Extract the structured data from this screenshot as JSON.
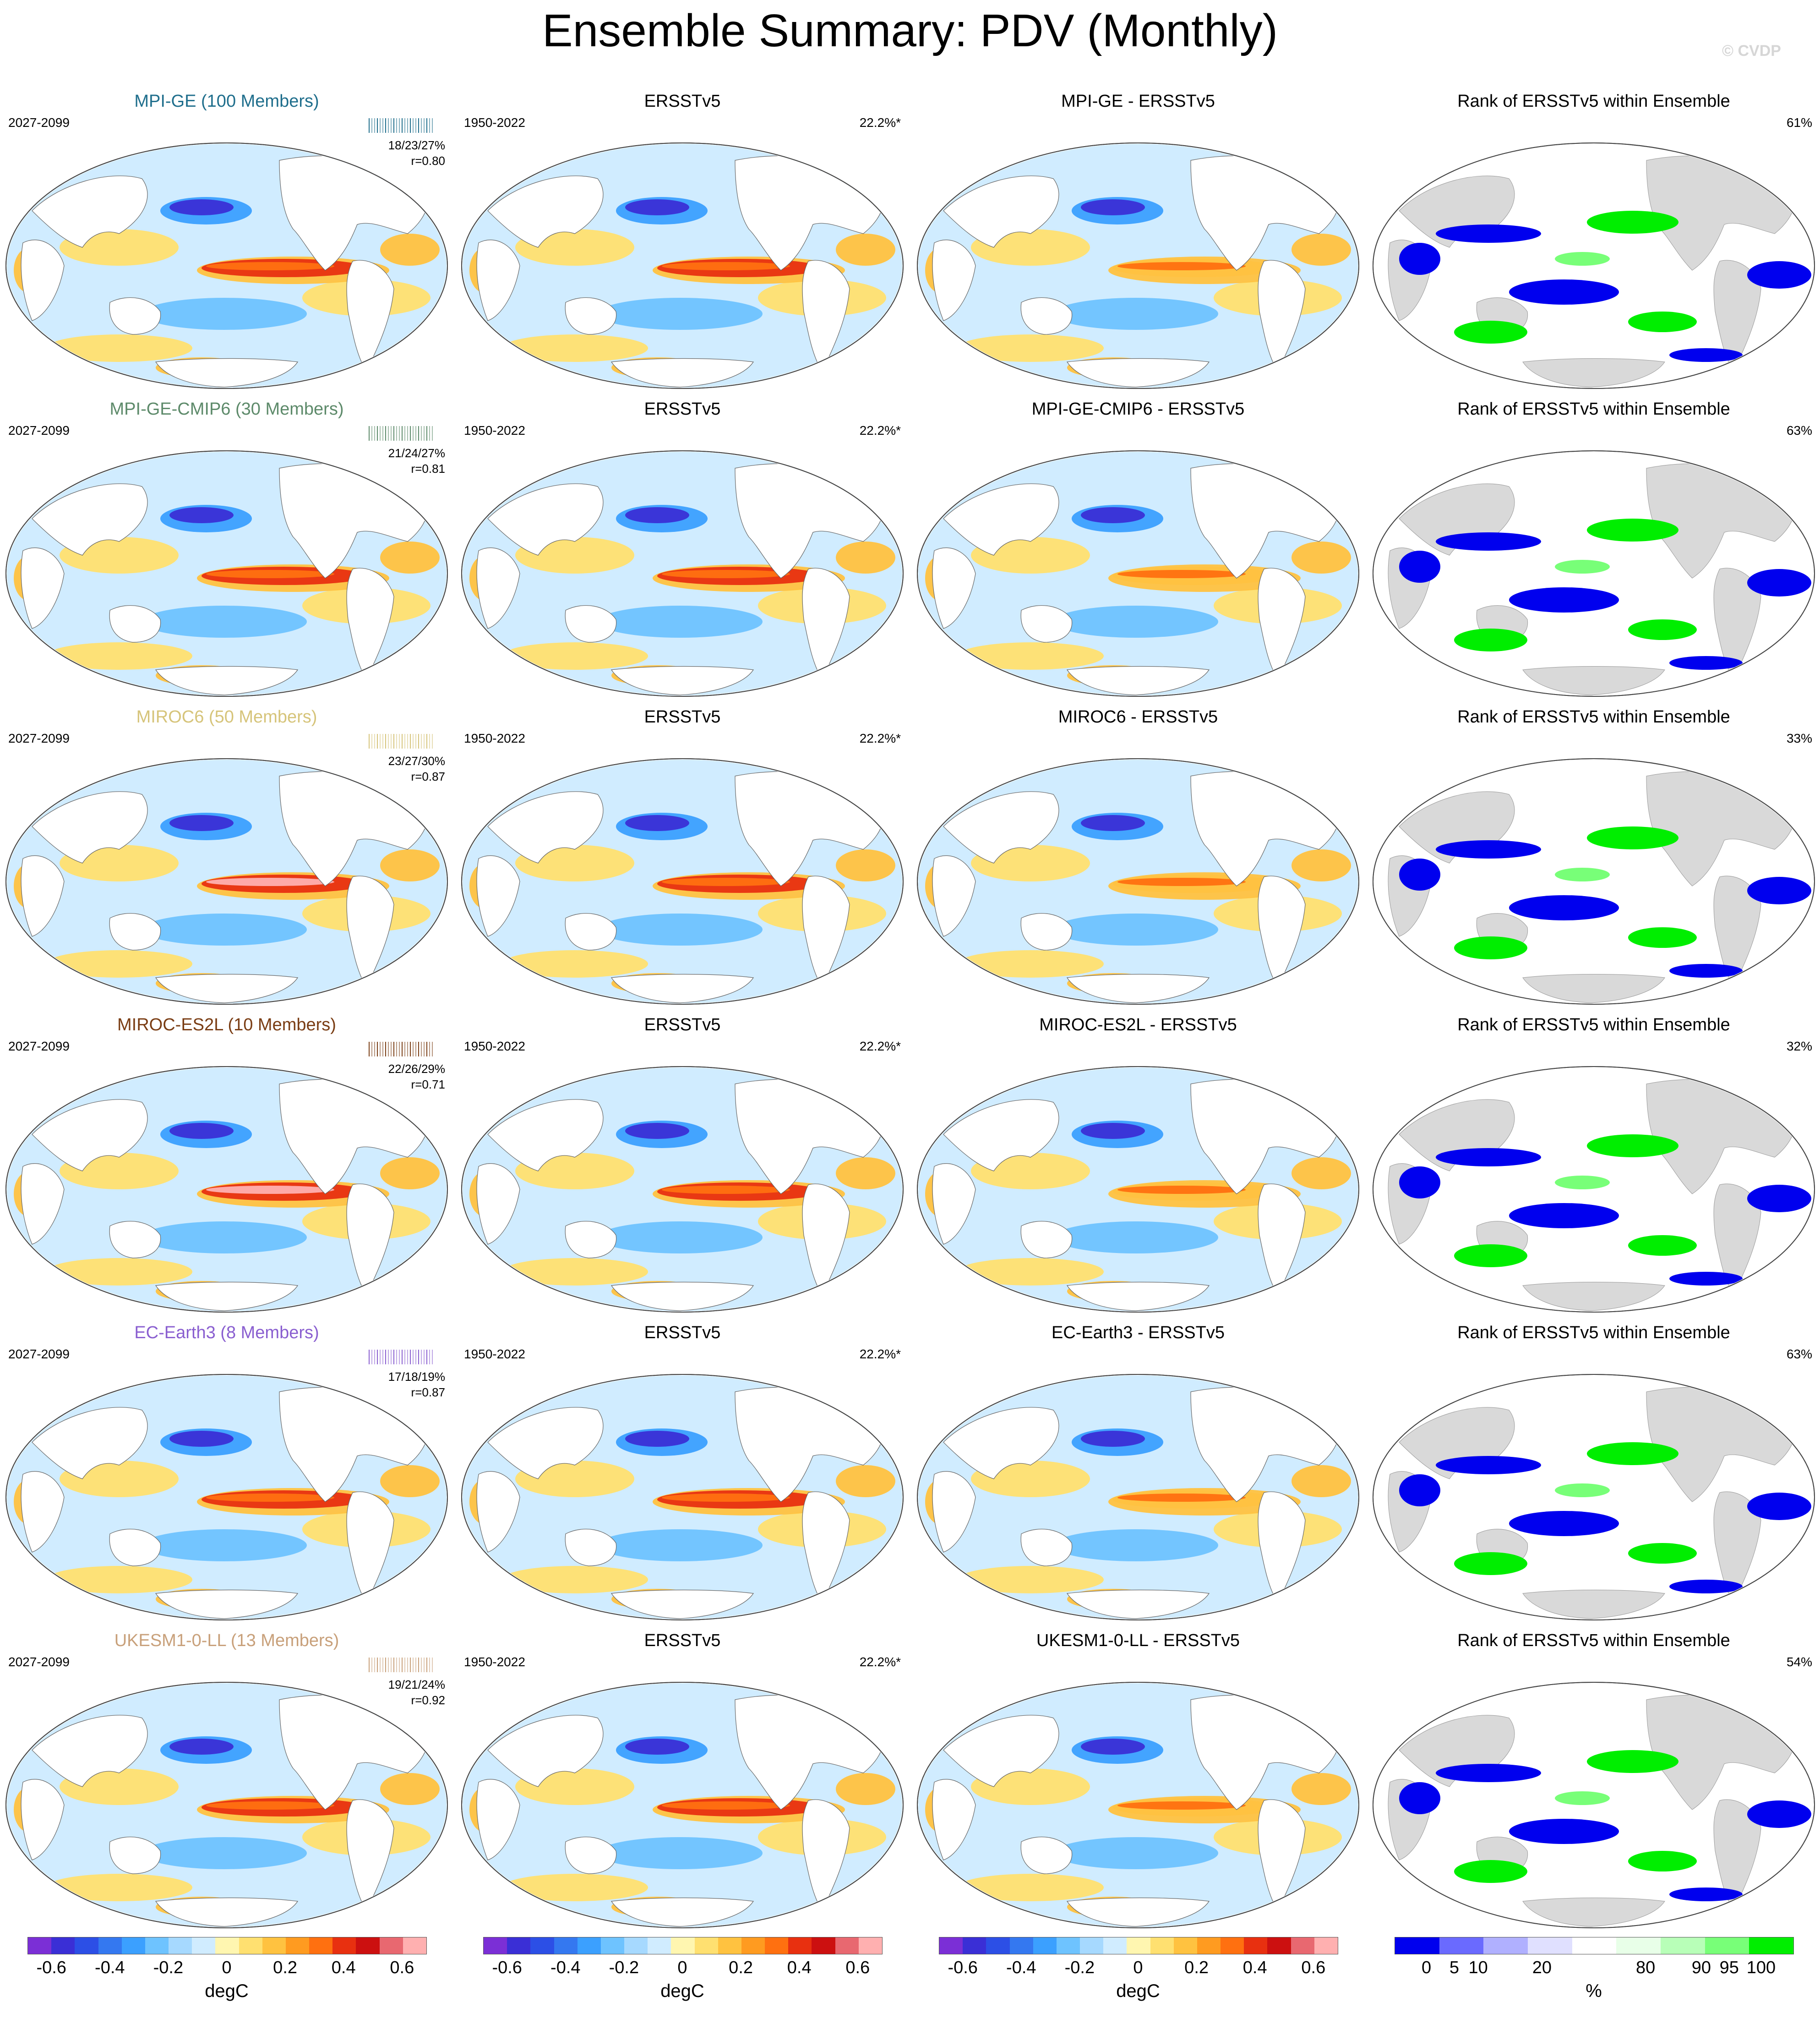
{
  "title": "Ensemble Summary: PDV (Monthly)",
  "credit": "© CVDP",
  "colors": {
    "diverging": [
      "#7b2fd6",
      "#3a2fd6",
      "#2c4fe6",
      "#3478f0",
      "#3ba0ff",
      "#6ec3ff",
      "#a6d9ff",
      "#d0ecff",
      "#fff6b0",
      "#ffe070",
      "#ffc240",
      "#ff9b20",
      "#ff7010",
      "#e83010",
      "#cc1010",
      "#e86870",
      "#ffb0b0"
    ],
    "rank": [
      "#0000ee",
      "#6a6aff",
      "#b0b0ff",
      "#e0e0ff",
      "#ffffff",
      "#e8ffe8",
      "#b8ffb8",
      "#78ff78",
      "#00ee00"
    ],
    "land_grey": "#d9d9d9"
  },
  "rows": [
    {
      "model": "MPI-GE (100 Members)",
      "model_color": "#1f6e8c",
      "period": "2027-2099",
      "stats": "18/23/27%",
      "corr": "r=0.80",
      "obs_title": "ERSSTv5",
      "obs_period": "1950-2022",
      "obs_pct": "22.2%*",
      "diff_title": "MPI-GE - ERSSTv5",
      "rank_title": "Rank of ERSSTv5 within Ensemble",
      "rank_pct": "61%"
    },
    {
      "model": "MPI-GE-CMIP6 (30 Members)",
      "model_color": "#5d8a6a",
      "period": "2027-2099",
      "stats": "21/24/27%",
      "corr": "r=0.81",
      "obs_title": "ERSSTv5",
      "obs_period": "1950-2022",
      "obs_pct": "22.2%*",
      "diff_title": "MPI-GE-CMIP6 - ERSSTv5",
      "rank_title": "Rank of ERSSTv5 within Ensemble",
      "rank_pct": "63%"
    },
    {
      "model": "MIROC6 (50 Members)",
      "model_color": "#d6c47a",
      "period": "2027-2099",
      "stats": "23/27/30%",
      "corr": "r=0.87",
      "obs_title": "ERSSTv5",
      "obs_period": "1950-2022",
      "obs_pct": "22.2%*",
      "diff_title": "MIROC6 - ERSSTv5",
      "rank_title": "Rank of ERSSTv5 within Ensemble",
      "rank_pct": "33%"
    },
    {
      "model": "MIROC-ES2L (10 Members)",
      "model_color": "#7a3d14",
      "period": "2027-2099",
      "stats": "22/26/29%",
      "corr": "r=0.71",
      "obs_title": "ERSSTv5",
      "obs_period": "1950-2022",
      "obs_pct": "22.2%*",
      "diff_title": "MIROC-ES2L - ERSSTv5",
      "rank_title": "Rank of ERSSTv5 within Ensemble",
      "rank_pct": "32%"
    },
    {
      "model": "EC-Earth3 (8 Members)",
      "model_color": "#8a5fd0",
      "period": "2027-2099",
      "stats": "17/18/19%",
      "corr": "r=0.87",
      "obs_title": "ERSSTv5",
      "obs_period": "1950-2022",
      "obs_pct": "22.2%*",
      "diff_title": "EC-Earth3 - ERSSTv5",
      "rank_title": "Rank of ERSSTv5 within Ensemble",
      "rank_pct": "63%"
    },
    {
      "model": "UKESM1-0-LL (13 Members)",
      "model_color": "#c8a07a",
      "period": "2027-2099",
      "stats": "19/21/24%",
      "corr": "r=0.92",
      "obs_title": "ERSSTv5",
      "obs_period": "1950-2022",
      "obs_pct": "22.2%*",
      "diff_title": "UKESM1-0-LL - ERSSTv5",
      "rank_title": "Rank of ERSSTv5 within Ensemble",
      "rank_pct": "54%"
    }
  ],
  "colorbars": {
    "sst_ticks": [
      "-0.6",
      "-0.4",
      "-0.2",
      "0",
      "0.2",
      "0.4",
      "0.6"
    ],
    "sst_unit": "degC",
    "rank_ticks": [
      "0",
      "5",
      "10",
      "20",
      "80",
      "90",
      "95",
      "100"
    ],
    "rank_unit": "%"
  }
}
